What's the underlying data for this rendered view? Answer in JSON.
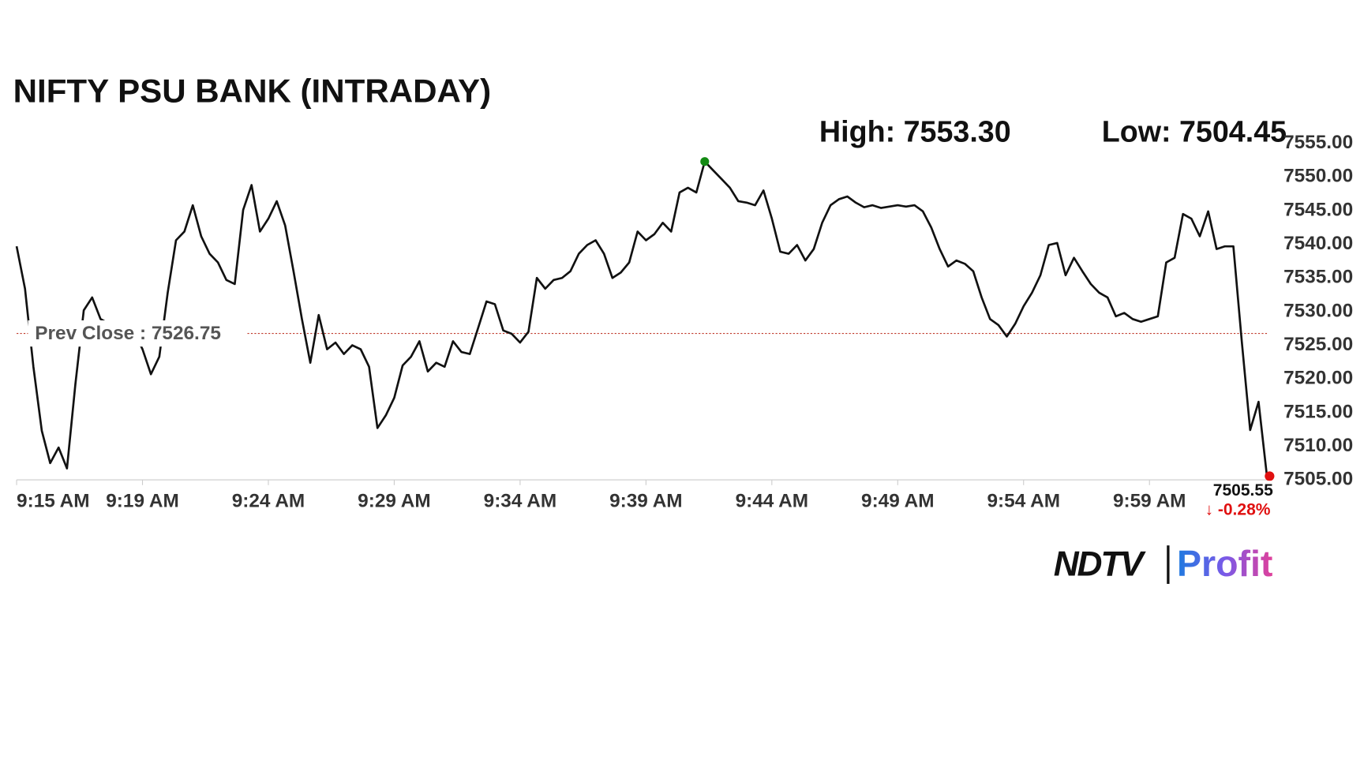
{
  "chart_data": {
    "type": "line",
    "title": "NIFTY PSU BANK (INTRADAY)",
    "high_label": "High: 7553.30",
    "low_label": "Low: 7504.45",
    "prev_close": {
      "value": 7526.75,
      "label": "Prev Close : 7526.75"
    },
    "last_label": "7505.55",
    "change_label": "↓ -0.28%",
    "logo": [
      "NDTV",
      "Profit"
    ],
    "color": "#111111",
    "high_color": "#138a13",
    "last_color": "#e01010",
    "high_index": 82,
    "xlim": [
      0,
      149
    ],
    "xticks": [
      {
        "value": 0,
        "label": "9:15 AM"
      },
      {
        "value": 15,
        "label": "9:19 AM"
      },
      {
        "value": 30,
        "label": "9:24 AM"
      },
      {
        "value": 45,
        "label": "9:29 AM"
      },
      {
        "value": 60,
        "label": "9:34 AM"
      },
      {
        "value": 75,
        "label": "9:39 AM"
      },
      {
        "value": 90,
        "label": "9:44 AM"
      },
      {
        "value": 105,
        "label": "9:49 AM"
      },
      {
        "value": 120,
        "label": "9:54 AM"
      },
      {
        "value": 135,
        "label": "9:59 AM"
      }
    ],
    "ylim": [
      7505,
      7555
    ],
    "yticks": [
      {
        "value": 7505,
        "label": "7505.00"
      },
      {
        "value": 7510,
        "label": "7510.00"
      },
      {
        "value": 7515,
        "label": "7515.00"
      },
      {
        "value": 7520,
        "label": "7520.00"
      },
      {
        "value": 7525,
        "label": "7525.00"
      },
      {
        "value": 7530,
        "label": "7530.00"
      },
      {
        "value": 7535,
        "label": "7535.00"
      },
      {
        "value": 7540,
        "label": "7540.00"
      },
      {
        "value": 7545,
        "label": "7545.00"
      },
      {
        "value": 7550,
        "label": "7550.00"
      },
      {
        "value": 7555,
        "label": "7555.00"
      }
    ],
    "values": [
      7539.7,
      7533.4,
      7521.8,
      7512.3,
      7507.5,
      7509.8,
      7506.7,
      7519.2,
      7530.2,
      7532.1,
      7528.9,
      7528.2,
      7527,
      7527,
      7527,
      7524.4,
      7520.7,
      7523.3,
      7532.8,
      7540.6,
      7541.9,
      7545.8,
      7541.2,
      7538.6,
      7537.3,
      7534.7,
      7534.1,
      7545.1,
      7548.8,
      7541.9,
      7543.8,
      7546.4,
      7542.8,
      7536,
      7528.9,
      7522.4,
      7529.5,
      7524.4,
      7525.4,
      7523.7,
      7525,
      7524.4,
      7521.8,
      7512.7,
      7514.6,
      7517.2,
      7522,
      7523.3,
      7525.6,
      7521.1,
      7522.4,
      7521.8,
      7525.6,
      7524,
      7523.7,
      7527.6,
      7531.5,
      7531.1,
      7527.2,
      7526.7,
      7525.4,
      7527,
      7535,
      7533.4,
      7534.7,
      7535,
      7536,
      7538.6,
      7539.9,
      7540.6,
      7538.6,
      7535,
      7535.8,
      7537.3,
      7541.9,
      7540.6,
      7541.5,
      7543.2,
      7541.9,
      7547.7,
      7548.4,
      7547.7,
      7552.3,
      7551,
      7549.7,
      7548.4,
      7546.4,
      7546.2,
      7545.8,
      7548,
      7543.8,
      7538.9,
      7538.6,
      7539.9,
      7537.6,
      7539.3,
      7543.2,
      7545.8,
      7546.7,
      7547.1,
      7546.2,
      7545.5,
      7545.8,
      7545.4,
      7545.6,
      7545.8,
      7545.6,
      7545.8,
      7544.9,
      7542.5,
      7539.3,
      7536.7,
      7537.6,
      7537.1,
      7536,
      7532.1,
      7528.9,
      7528,
      7526.3,
      7528.2,
      7530.8,
      7532.8,
      7535.4,
      7539.9,
      7540.2,
      7535.4,
      7538,
      7536,
      7534.1,
      7532.8,
      7532.1,
      7529.3,
      7529.8,
      7528.9,
      7528.5,
      7528.9,
      7529.3,
      7537.3,
      7538,
      7544.5,
      7543.8,
      7541.2,
      7544.9,
      7539.3,
      7539.7,
      7539.7,
      7525.6,
      7512.4,
      7516.6,
      7505.55
    ]
  }
}
